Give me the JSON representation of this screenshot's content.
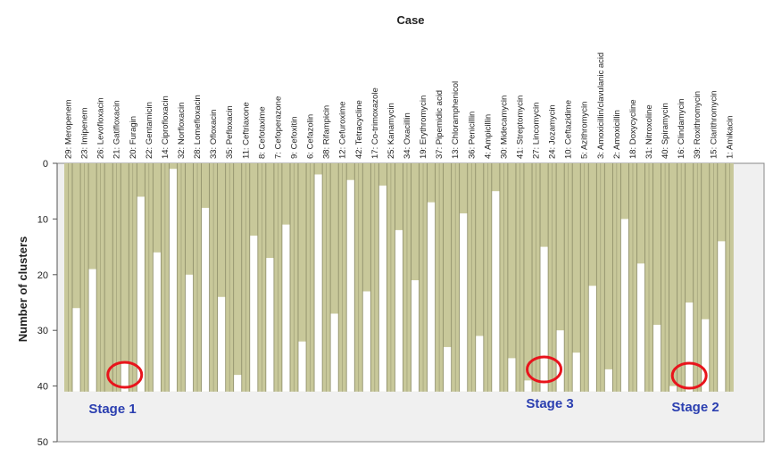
{
  "chart_data": {
    "type": "icicle",
    "title": "Case",
    "ylabel": "Number of clusters",
    "ylim": [
      0,
      50
    ],
    "yticks": [
      0,
      10,
      20,
      30,
      40,
      50
    ],
    "grid": false,
    "fill_color": "#c8c89a",
    "background_color": "#f0f0f0",
    "annotation_color": "#2b3fb0",
    "highlight_color": "#e8141c",
    "cases": [
      "29: Meropenem",
      "23: Imipenem",
      "26: Levofloxacin",
      "21: Gatifloxacin",
      "20: Furagin",
      "22: Gentamicin",
      "14: Ciprofloxacin",
      "32: Norfloxacin",
      "28: Lomefloxacin",
      "33: Ofloxacin",
      "35: Pefloxacin",
      "11: Ceftriaxone",
      "8: Cefotaxime",
      "7: Cefoperazone",
      "9: Cefoxitin",
      "6: Cefazolin",
      "38: Rifampicin",
      "12: Cefuroxime",
      "42: Tetracycline",
      "17: Co-trimoxazole",
      "25: Kanamycin",
      "34: Oxacillin",
      "19: Erythromycin",
      "37: Pipemidic acid",
      "13: Chloramphenicol",
      "36: Penicillin",
      "4: Ampicillin",
      "30: Midecamycin",
      "41: Streptomycin",
      "27: Lincomycin",
      "24: Jozamycin",
      "10: Ceftazidime",
      "5: Azithromycin",
      "3: Amoxicillin/clavulanic acid",
      "2: Amoxicillin",
      "18: Doxycycline",
      "31: Nitroxoline",
      "40: Spiramycin",
      "16: Clindamycin",
      "39: Roxithromycin",
      "15: Clarithromycin",
      "1: Amikacin"
    ],
    "merge_levels": [
      26,
      19,
      41,
      36,
      6,
      16,
      1,
      20,
      8,
      24,
      38,
      13,
      17,
      11,
      32,
      2,
      27,
      3,
      23,
      4,
      12,
      21,
      7,
      33,
      9,
      31,
      5,
      35,
      39,
      15,
      30,
      34,
      22,
      37,
      10,
      18,
      29,
      40,
      25,
      28,
      14
    ],
    "annotations": [
      {
        "label": "Stage 1",
        "between_cases": [
          3,
          4
        ]
      },
      {
        "label": "Stage 3",
        "between_cases": [
          29,
          30
        ]
      },
      {
        "label": "Stage 2",
        "between_cases": [
          38,
          39
        ]
      }
    ]
  }
}
